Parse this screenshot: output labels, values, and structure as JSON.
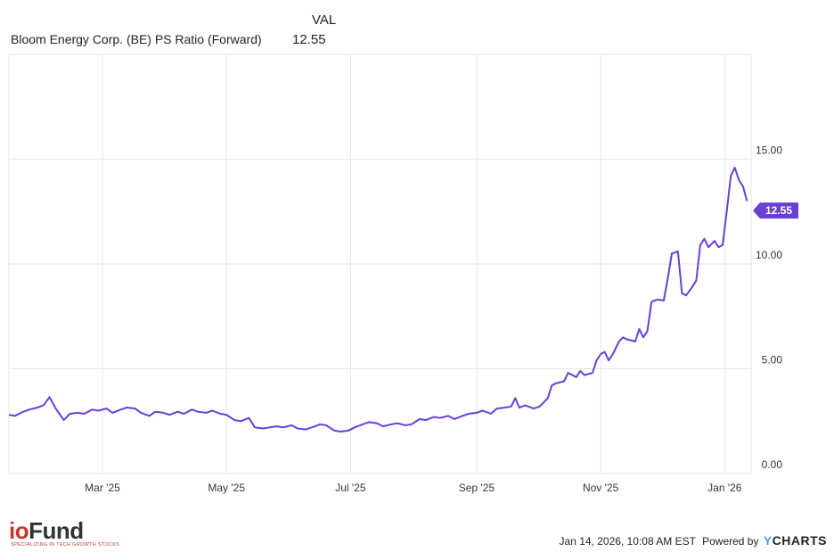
{
  "legend": {
    "column_header": "VAL",
    "series_name": "Bloom Energy Corp. (BE) PS Ratio (Forward)",
    "series_value": "12.55"
  },
  "footer": {
    "logo_io": "io",
    "logo_fund": "Fund",
    "logo_tagline": "SPECIALIZING IN TECH GROWTH STOCKS",
    "timestamp": "Jan 14, 2026, 10:08 AM EST",
    "powered_by": "Powered by",
    "brand_y": "Y",
    "brand_rest": "CHARTS"
  },
  "colors": {
    "line": "#6a3fd4",
    "grid": "#e6e6e6",
    "tag_bg": "#6a3fd4"
  },
  "chart_data": {
    "type": "line",
    "title": "",
    "xlabel": "",
    "ylabel": "",
    "ylim": [
      0,
      20
    ],
    "y_ticks": [
      0,
      5,
      10,
      15
    ],
    "y_tick_labels": [
      "0.00",
      "5.00",
      "10.00",
      "15.00"
    ],
    "x_range": [
      "2025-01-14",
      "2026-01-14"
    ],
    "x_ticks": [
      "2025-03-01",
      "2025-05-01",
      "2025-07-01",
      "2025-09-01",
      "2025-11-01",
      "2026-01-01"
    ],
    "x_tick_labels": [
      "Mar '25",
      "May '25",
      "Jul '25",
      "Sep '25",
      "Nov '25",
      "Jan '26"
    ],
    "grid": true,
    "last_value_tag": "12.55",
    "series": [
      {
        "name": "Bloom Energy Corp. (BE) PS Ratio (Forward)",
        "points": [
          [
            "2025-01-14",
            2.8
          ],
          [
            "2025-01-17",
            2.75
          ],
          [
            "2025-01-21",
            2.95
          ],
          [
            "2025-01-24",
            3.05
          ],
          [
            "2025-01-28",
            3.15
          ],
          [
            "2025-01-31",
            3.25
          ],
          [
            "2025-02-03",
            3.65
          ],
          [
            "2025-02-06",
            3.1
          ],
          [
            "2025-02-10",
            2.55
          ],
          [
            "2025-02-13",
            2.85
          ],
          [
            "2025-02-17",
            2.9
          ],
          [
            "2025-02-20",
            2.85
          ],
          [
            "2025-02-24",
            3.05
          ],
          [
            "2025-02-27",
            3.0
          ],
          [
            "2025-03-03",
            3.1
          ],
          [
            "2025-03-06",
            2.9
          ],
          [
            "2025-03-10",
            3.05
          ],
          [
            "2025-03-13",
            3.15
          ],
          [
            "2025-03-17",
            3.1
          ],
          [
            "2025-03-20",
            2.9
          ],
          [
            "2025-03-24",
            2.75
          ],
          [
            "2025-03-27",
            2.95
          ],
          [
            "2025-03-31",
            2.9
          ],
          [
            "2025-04-03",
            2.8
          ],
          [
            "2025-04-07",
            2.95
          ],
          [
            "2025-04-10",
            2.85
          ],
          [
            "2025-04-14",
            3.05
          ],
          [
            "2025-04-17",
            2.95
          ],
          [
            "2025-04-21",
            2.9
          ],
          [
            "2025-04-24",
            3.0
          ],
          [
            "2025-04-28",
            2.85
          ],
          [
            "2025-05-01",
            2.8
          ],
          [
            "2025-05-05",
            2.55
          ],
          [
            "2025-05-08",
            2.5
          ],
          [
            "2025-05-12",
            2.65
          ],
          [
            "2025-05-15",
            2.2
          ],
          [
            "2025-05-19",
            2.15
          ],
          [
            "2025-05-22",
            2.2
          ],
          [
            "2025-05-26",
            2.25
          ],
          [
            "2025-05-29",
            2.2
          ],
          [
            "2025-06-02",
            2.3
          ],
          [
            "2025-06-05",
            2.15
          ],
          [
            "2025-06-09",
            2.1
          ],
          [
            "2025-06-12",
            2.2
          ],
          [
            "2025-06-16",
            2.35
          ],
          [
            "2025-06-19",
            2.3
          ],
          [
            "2025-06-23",
            2.05
          ],
          [
            "2025-06-26",
            2.0
          ],
          [
            "2025-06-30",
            2.05
          ],
          [
            "2025-07-03",
            2.2
          ],
          [
            "2025-07-07",
            2.35
          ],
          [
            "2025-07-10",
            2.45
          ],
          [
            "2025-07-14",
            2.4
          ],
          [
            "2025-07-17",
            2.25
          ],
          [
            "2025-07-21",
            2.35
          ],
          [
            "2025-07-24",
            2.4
          ],
          [
            "2025-07-28",
            2.3
          ],
          [
            "2025-07-31",
            2.35
          ],
          [
            "2025-08-04",
            2.6
          ],
          [
            "2025-08-07",
            2.55
          ],
          [
            "2025-08-11",
            2.7
          ],
          [
            "2025-08-14",
            2.65
          ],
          [
            "2025-08-18",
            2.75
          ],
          [
            "2025-08-21",
            2.6
          ],
          [
            "2025-08-25",
            2.75
          ],
          [
            "2025-08-28",
            2.85
          ],
          [
            "2025-09-01",
            2.9
          ],
          [
            "2025-09-04",
            3.0
          ],
          [
            "2025-09-08",
            2.85
          ],
          [
            "2025-09-11",
            3.1
          ],
          [
            "2025-09-15",
            3.15
          ],
          [
            "2025-09-18",
            3.2
          ],
          [
            "2025-09-20",
            3.6
          ],
          [
            "2025-09-22",
            3.15
          ],
          [
            "2025-09-25",
            3.25
          ],
          [
            "2025-09-29",
            3.1
          ],
          [
            "2025-10-02",
            3.2
          ],
          [
            "2025-10-06",
            3.6
          ],
          [
            "2025-10-08",
            4.2
          ],
          [
            "2025-10-10",
            4.3
          ],
          [
            "2025-10-14",
            4.4
          ],
          [
            "2025-10-16",
            4.8
          ],
          [
            "2025-10-20",
            4.6
          ],
          [
            "2025-10-22",
            4.9
          ],
          [
            "2025-10-24",
            4.7
          ],
          [
            "2025-10-28",
            4.8
          ],
          [
            "2025-10-30",
            5.4
          ],
          [
            "2025-11-01",
            5.7
          ],
          [
            "2025-11-03",
            5.8
          ],
          [
            "2025-11-05",
            5.4
          ],
          [
            "2025-11-07",
            5.7
          ],
          [
            "2025-11-10",
            6.3
          ],
          [
            "2025-11-12",
            6.5
          ],
          [
            "2025-11-14",
            6.4
          ],
          [
            "2025-11-18",
            6.3
          ],
          [
            "2025-11-20",
            6.9
          ],
          [
            "2025-11-22",
            6.5
          ],
          [
            "2025-11-24",
            6.8
          ],
          [
            "2025-11-26",
            8.2
          ],
          [
            "2025-11-29",
            8.3
          ],
          [
            "2025-12-02",
            8.25
          ],
          [
            "2025-12-04",
            9.3
          ],
          [
            "2025-12-06",
            10.5
          ],
          [
            "2025-12-09",
            10.6
          ],
          [
            "2025-12-11",
            8.6
          ],
          [
            "2025-12-13",
            8.5
          ],
          [
            "2025-12-16",
            8.9
          ],
          [
            "2025-12-18",
            9.2
          ],
          [
            "2025-12-20",
            10.9
          ],
          [
            "2025-12-22",
            11.2
          ],
          [
            "2025-12-24",
            10.8
          ],
          [
            "2025-12-27",
            11.1
          ],
          [
            "2025-12-29",
            10.8
          ],
          [
            "2025-12-31",
            10.9
          ],
          [
            "2026-01-02",
            12.5
          ],
          [
            "2026-01-04",
            14.2
          ],
          [
            "2026-01-06",
            14.6
          ],
          [
            "2026-01-08",
            14.0
          ],
          [
            "2026-01-10",
            13.7
          ],
          [
            "2026-01-12",
            13.0
          ]
        ]
      }
    ]
  }
}
